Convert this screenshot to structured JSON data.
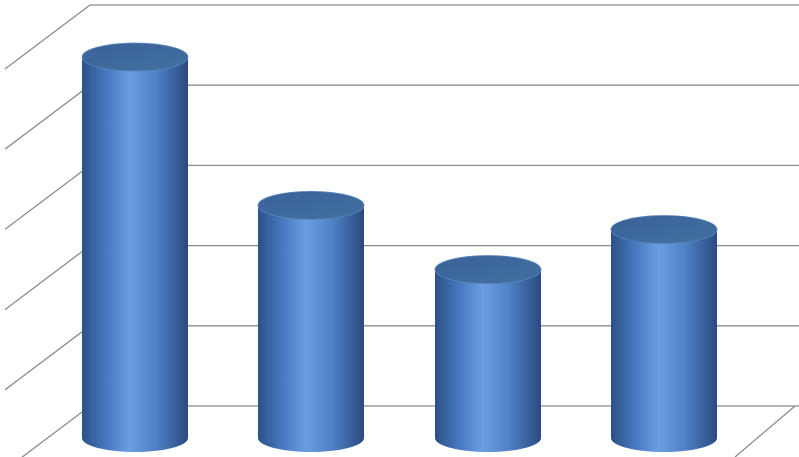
{
  "chart_data": {
    "type": "bar",
    "style": "3d-cylinder",
    "categories": [
      "",
      "",
      "",
      ""
    ],
    "values": [
      4.75,
      2.9,
      2.1,
      2.6
    ],
    "title": "",
    "xlabel": "",
    "ylabel": "",
    "ylim": [
      0,
      5
    ],
    "grid": true,
    "legend": "none",
    "colors": {
      "bar": "#4f81bd",
      "bar_dark": "#2c5088",
      "bar_light": "#6a9ee0",
      "top": "#3d679f",
      "grid": "#8c8c8c"
    }
  }
}
